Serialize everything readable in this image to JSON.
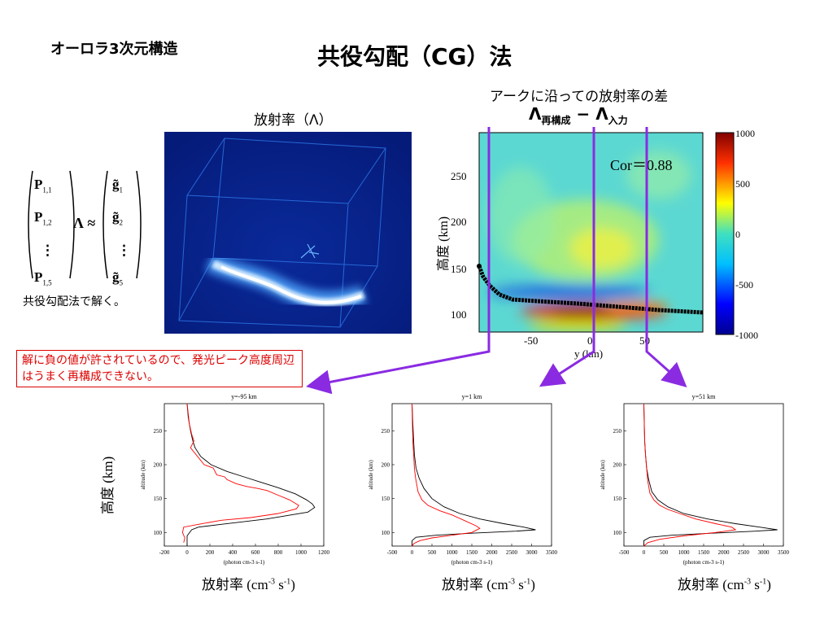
{
  "header": {
    "topic": "オーロラ3次元構造",
    "title": "共役勾配（CG）法"
  },
  "emission_label": "放射率（Λ）",
  "arc_diff_label": "アークに沿っての放射率の差",
  "diff_formula": {
    "lam1": "Λ",
    "sub1": "再構成",
    "minus": " − ",
    "lam2": "Λ",
    "sub2": "入力"
  },
  "solve_text": "共役勾配法で解く。",
  "warning": "解に負の値が許されているので、発光ピーク高度周辺はうまく再構成できない。",
  "equation": {
    "p_entries": [
      "P",
      "P",
      "⋮",
      "P"
    ],
    "p_subs": [
      "1,1",
      "1,2",
      "",
      "1,5"
    ],
    "lambda": "Λ",
    "approx": "≈",
    "g_entries": [
      "g̃",
      "g̃",
      "⋮",
      "g̃"
    ],
    "g_subs": [
      "1",
      "2",
      "",
      "5"
    ]
  },
  "diff_map": {
    "cor_text": "Cor＝0.88",
    "ylabel": "高度 (km)",
    "xlabel": "y (km)",
    "y_ticks": [
      "250",
      "200",
      "150",
      "100"
    ],
    "x_ticks": [
      "-50",
      "0",
      "50"
    ],
    "colorbar_ticks": [
      "1000",
      "500",
      "0",
      "-500",
      "-1000"
    ]
  },
  "big_ylabel": "高度 (km)",
  "chart_data": [
    {
      "type": "line",
      "title": "y=-95 km",
      "xlabel": "(photon cm-3 s-1)",
      "ylabel": "altitude (km)",
      "xlim": [
        -200,
        1200
      ],
      "ylim": [
        80,
        290
      ],
      "x_ticks": [
        "-200",
        "0",
        "200",
        "400",
        "600",
        "800",
        "1000",
        "1200"
      ],
      "y_ticks": [
        "100",
        "150",
        "200",
        "250"
      ],
      "series": [
        {
          "color": "#000000",
          "x": [
            0,
            10,
            30,
            50,
            70,
            120,
            210,
            350,
            500,
            650,
            800,
            950,
            1050,
            1100,
            1120,
            1060,
            700,
            300,
            100,
            40,
            0,
            0
          ],
          "y": [
            290,
            270,
            250,
            235,
            225,
            212,
            200,
            190,
            182,
            174,
            166,
            157,
            148,
            142,
            137,
            130,
            120,
            112,
            108,
            104,
            95,
            80
          ]
        },
        {
          "color": "#ff0000",
          "x": [
            0,
            10,
            20,
            40,
            60,
            30,
            150,
            230,
            260,
            330,
            350,
            430,
            520,
            620,
            700,
            800,
            900,
            980,
            960,
            800,
            560,
            300,
            100,
            -30,
            -40,
            -20,
            -30
          ],
          "y": [
            290,
            275,
            260,
            245,
            235,
            225,
            200,
            195,
            185,
            182,
            178,
            172,
            168,
            165,
            162,
            155,
            148,
            140,
            135,
            128,
            122,
            118,
            112,
            108,
            100,
            92,
            85
          ]
        }
      ]
    },
    {
      "type": "line",
      "title": "y=1 km",
      "xlabel": "(photon cm-3 s-1)",
      "ylabel": "altitude (km)",
      "xlim": [
        -500,
        3500
      ],
      "ylim": [
        80,
        290
      ],
      "x_ticks": [
        "-500",
        "0",
        "500",
        "1000",
        "1500",
        "2000",
        "2500",
        "3000",
        "3500"
      ],
      "y_ticks": [
        "100",
        "150",
        "200",
        "250"
      ],
      "series": [
        {
          "color": "#000000",
          "x": [
            0,
            20,
            40,
            60,
            100,
            180,
            300,
            500,
            800,
            1200,
            1700,
            2300,
            2800,
            3100,
            2600,
            1500,
            600,
            100,
            0,
            0
          ],
          "y": [
            290,
            260,
            235,
            215,
            195,
            180,
            165,
            150,
            138,
            128,
            120,
            113,
            108,
            104,
            102,
            99,
            96,
            93,
            88,
            80
          ]
        },
        {
          "color": "#ff0000",
          "x": [
            0,
            10,
            20,
            40,
            60,
            90,
            150,
            250,
            400,
            700,
            1000,
            1300,
            1600,
            1700,
            1500,
            1000,
            500,
            200,
            50,
            0
          ],
          "y": [
            290,
            260,
            235,
            215,
            195,
            180,
            160,
            148,
            140,
            132,
            126,
            118,
            110,
            106,
            100,
            96,
            92,
            88,
            84,
            80
          ]
        }
      ]
    },
    {
      "type": "line",
      "title": "y=51 km",
      "xlabel": "(photon cm-3 s-1)",
      "ylabel": "altitude (km)",
      "xlim": [
        -500,
        3500
      ],
      "ylim": [
        80,
        290
      ],
      "x_ticks": [
        "-500",
        "0",
        "500",
        "1000",
        "1500",
        "2000",
        "2500",
        "3000",
        "3500"
      ],
      "y_ticks": [
        "100",
        "150",
        "200",
        "250"
      ],
      "series": [
        {
          "color": "#000000",
          "x": [
            0,
            10,
            20,
            40,
            70,
            120,
            200,
            350,
            600,
            1000,
            1600,
            2300,
            2900,
            3350,
            2800,
            1700,
            700,
            150,
            0,
            0
          ],
          "y": [
            290,
            260,
            235,
            215,
            195,
            178,
            160,
            148,
            138,
            128,
            120,
            113,
            108,
            104,
            102,
            99,
            96,
            93,
            88,
            80
          ]
        },
        {
          "color": "#ff0000",
          "x": [
            0,
            10,
            20,
            40,
            70,
            100,
            150,
            250,
            400,
            600,
            900,
            1300,
            1800,
            2200,
            2300,
            1800,
            1000,
            400,
            100,
            0
          ],
          "y": [
            290,
            260,
            235,
            215,
            195,
            175,
            158,
            148,
            140,
            134,
            128,
            120,
            113,
            108,
            104,
            100,
            95,
            90,
            85,
            80
          ]
        }
      ]
    }
  ],
  "emission_unit": [
    {
      "main": "放射率 (cm",
      "e1": "-3",
      "mid": " s",
      "e2": "-1",
      "end": ")"
    },
    {
      "main": "放射率 (cm",
      "e1": "-3",
      "mid": " s",
      "e2": "-1",
      "end": ")"
    },
    {
      "main": "放射率 (cm",
      "e1": "-3",
      "mid": " s",
      "e2": "-1",
      "end": ")"
    }
  ]
}
